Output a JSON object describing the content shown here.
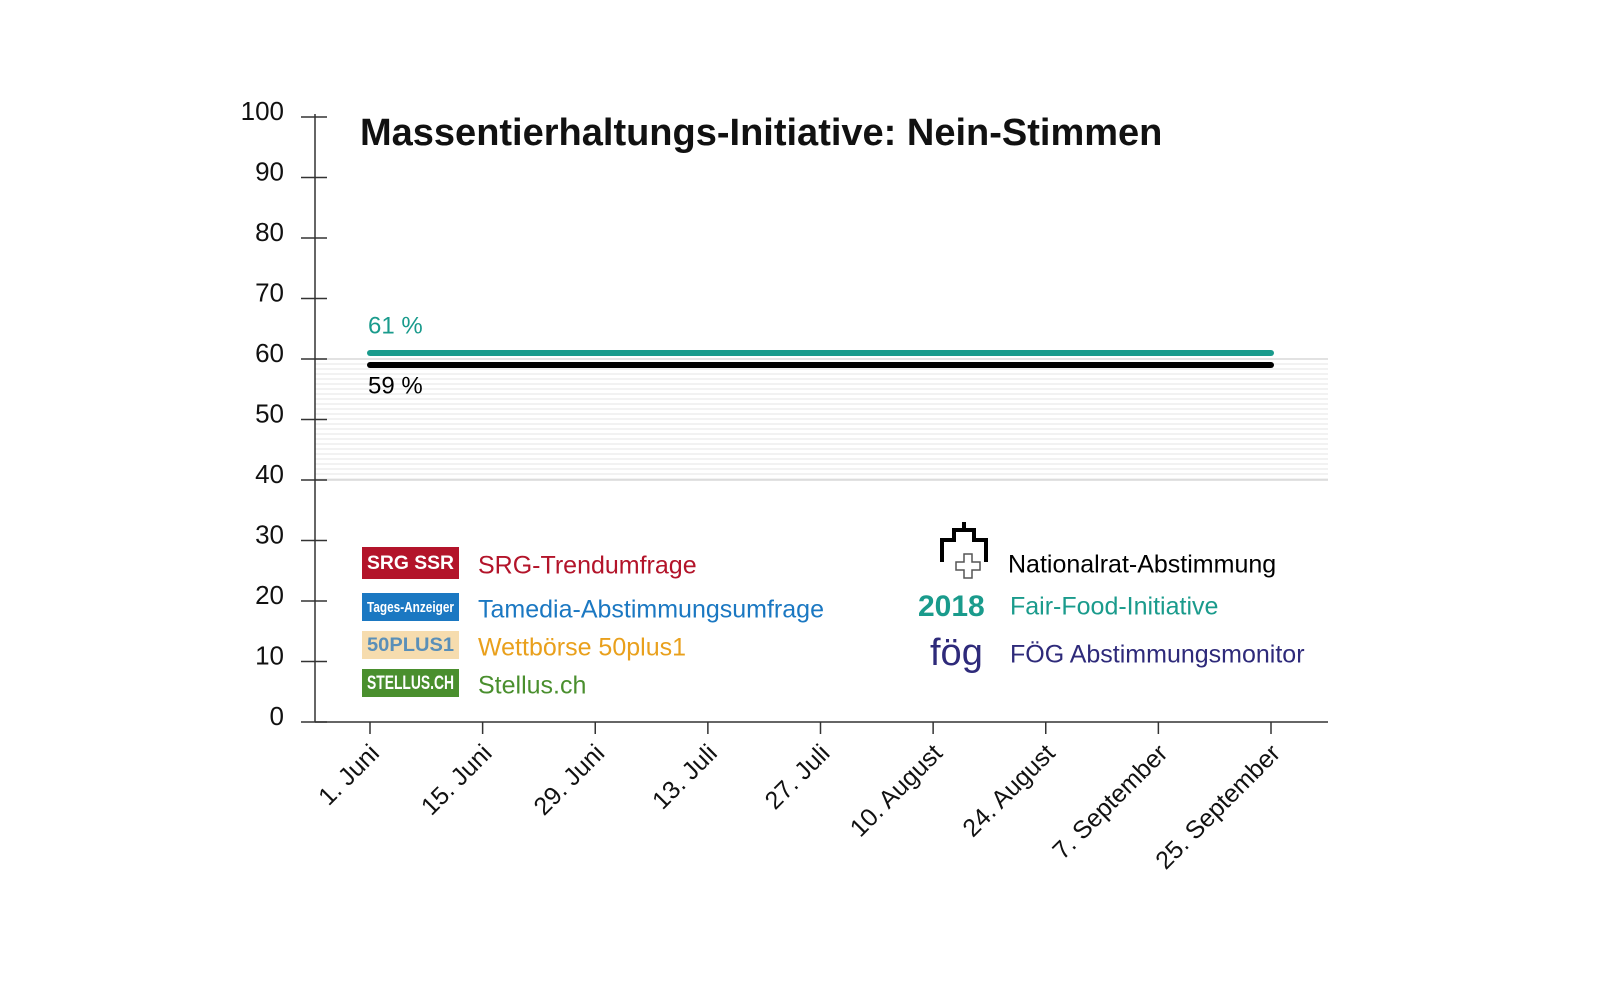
{
  "chart_data": {
    "type": "line",
    "title": "Massentierhaltungs-Initiative: Nein-Stimmen",
    "categories": [
      "1. Juni",
      "15. Juni",
      "29. Juni",
      "13. Juli",
      "27. Juli",
      "10. August",
      "24. August",
      "7. September",
      "25. September"
    ],
    "series": [
      {
        "name": "Fair-Food-Initiative",
        "logo": "2018",
        "color": "#1a9b8c",
        "values": [
          61,
          61,
          61,
          61,
          61,
          61,
          61,
          61,
          61
        ],
        "value_labels": [
          "61 %",
          null,
          null,
          null,
          null,
          null,
          null,
          null,
          null
        ],
        "label_side": "above"
      },
      {
        "name": "Nationalrat-Abstimmung",
        "color": "#000000",
        "values": [
          59,
          59,
          59,
          59,
          59,
          59,
          59,
          59,
          59
        ],
        "value_labels": [
          "59 %",
          null,
          null,
          null,
          null,
          null,
          null,
          null,
          null
        ],
        "label_side": "below"
      }
    ],
    "legend_items": [
      {
        "name": "SRG-Trendumfrage",
        "logo": "SRG SSR",
        "color": "#b3142a",
        "logo_fg": "#ffffff"
      },
      {
        "name": "Tamedia-Abstimmungsumfrage",
        "logo": "Tages-Anzeiger",
        "color": "#1b78c2",
        "logo_fg": "#ffffff"
      },
      {
        "name": "Wettbörse 50plus1",
        "logo": "50PLUS1",
        "color": "#e9a01c",
        "logo_bg": "#f6dcae",
        "logo_fg": "#5a8fb8"
      },
      {
        "name": "Stellus.ch",
        "logo": "STELLUS.CH",
        "color": "#4a8f2e",
        "logo_fg": "#ffffff"
      },
      {
        "name": "FÖG Abstimmungsmonitor",
        "logo": "fög",
        "color": "#2e2a7a"
      }
    ],
    "ylim": [
      0,
      100
    ],
    "yticks": [
      0,
      10,
      20,
      30,
      40,
      50,
      60,
      70,
      80,
      90,
      100
    ],
    "shaded_range": [
      40,
      60
    ]
  }
}
